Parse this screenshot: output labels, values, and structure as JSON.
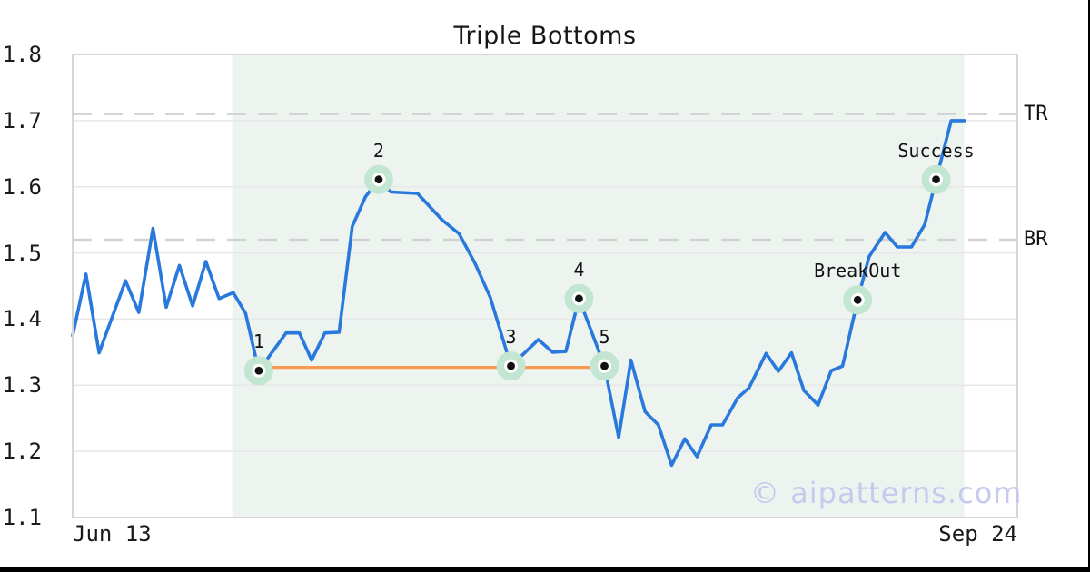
{
  "chart_data": {
    "type": "line",
    "title": "Triple Bottoms",
    "watermark": "© aipatterns.com",
    "grid": true,
    "legend": "none",
    "ylim": [
      1.1,
      1.8
    ],
    "yticks": [
      1.1,
      1.2,
      1.3,
      1.4,
      1.5,
      1.6,
      1.7,
      1.8
    ],
    "ytick_labels": [
      "1.1",
      "1.2",
      "1.3",
      "1.4",
      "1.5",
      "1.6",
      "1.7",
      "1.8"
    ],
    "xtick_labels": [
      "Jun 13",
      "Sep 24"
    ],
    "x_encoding": "fraction of x-axis from Jun 13 (0.0) to Sep 24 (1.0)",
    "shaded_region": {
      "x0": 0.169,
      "x1": 0.944
    },
    "hlines": [
      {
        "label": "TR",
        "value": 1.71,
        "style": "dashed"
      },
      {
        "label": "BR",
        "value": 1.52,
        "style": "dashed"
      }
    ],
    "neckline": {
      "x0": 0.197,
      "x1": 0.563,
      "value": 1.327
    },
    "series": [
      {
        "name": "price",
        "points": [
          [
            0.0,
            1.375
          ],
          [
            0.014,
            1.468
          ],
          [
            0.028,
            1.349
          ],
          [
            0.056,
            1.458
          ],
          [
            0.07,
            1.41
          ],
          [
            0.085,
            1.537
          ],
          [
            0.099,
            1.418
          ],
          [
            0.113,
            1.481
          ],
          [
            0.127,
            1.42
          ],
          [
            0.141,
            1.487
          ],
          [
            0.155,
            1.431
          ],
          [
            0.17,
            1.44
          ],
          [
            0.183,
            1.409
          ],
          [
            0.197,
            1.322
          ],
          [
            0.226,
            1.379
          ],
          [
            0.24,
            1.379
          ],
          [
            0.253,
            1.338
          ],
          [
            0.267,
            1.379
          ],
          [
            0.282,
            1.38
          ],
          [
            0.296,
            1.54
          ],
          [
            0.31,
            1.585
          ],
          [
            0.324,
            1.611
          ],
          [
            0.337,
            1.592
          ],
          [
            0.365,
            1.59
          ],
          [
            0.391,
            1.55
          ],
          [
            0.409,
            1.529
          ],
          [
            0.426,
            1.484
          ],
          [
            0.442,
            1.433
          ],
          [
            0.464,
            1.329
          ],
          [
            0.493,
            1.369
          ],
          [
            0.508,
            1.35
          ],
          [
            0.522,
            1.351
          ],
          [
            0.536,
            1.431
          ],
          [
            0.563,
            1.329
          ],
          [
            0.578,
            1.221
          ],
          [
            0.591,
            1.338
          ],
          [
            0.606,
            1.26
          ],
          [
            0.62,
            1.24
          ],
          [
            0.634,
            1.179
          ],
          [
            0.648,
            1.219
          ],
          [
            0.661,
            1.192
          ],
          [
            0.676,
            1.24
          ],
          [
            0.688,
            1.24
          ],
          [
            0.704,
            1.281
          ],
          [
            0.716,
            1.296
          ],
          [
            0.734,
            1.348
          ],
          [
            0.747,
            1.321
          ],
          [
            0.761,
            1.349
          ],
          [
            0.774,
            1.292
          ],
          [
            0.789,
            1.27
          ],
          [
            0.803,
            1.322
          ],
          [
            0.815,
            1.329
          ],
          [
            0.831,
            1.429
          ],
          [
            0.843,
            1.494
          ],
          [
            0.86,
            1.531
          ],
          [
            0.873,
            1.509
          ],
          [
            0.888,
            1.509
          ],
          [
            0.902,
            1.543
          ],
          [
            0.914,
            1.611
          ],
          [
            0.93,
            1.7
          ],
          [
            0.944,
            1.7
          ]
        ]
      }
    ],
    "markers": [
      {
        "label": "1",
        "x": 0.197,
        "value": 1.322
      },
      {
        "label": "2",
        "x": 0.324,
        "value": 1.611
      },
      {
        "label": "3",
        "x": 0.464,
        "value": 1.329
      },
      {
        "label": "4",
        "x": 0.536,
        "value": 1.431
      },
      {
        "label": "5",
        "x": 0.563,
        "value": 1.329
      },
      {
        "label": "BreakOut",
        "x": 0.831,
        "value": 1.429
      },
      {
        "label": "Success",
        "x": 0.914,
        "value": 1.611
      }
    ],
    "colors": {
      "line": "#2979dd",
      "neckline": "#f79a4e",
      "marker_halo": "#c3e6d2",
      "marker_ring": "#ffffff",
      "marker_dot": "#111111",
      "shade": "#edf4f0",
      "grid": "#e7e7e7",
      "dashed": "#d2d2d2",
      "border": "#d6d6d6",
      "watermark": "#c9c9ee"
    }
  }
}
